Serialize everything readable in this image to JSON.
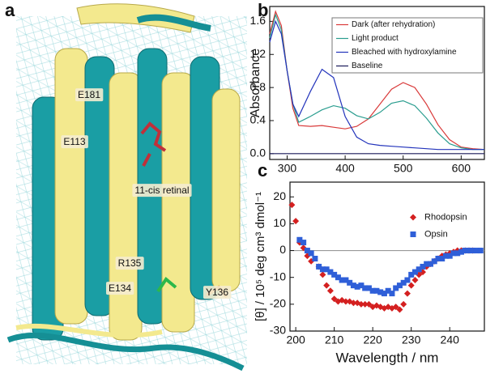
{
  "structure": {
    "panel_label": "a",
    "labels": [
      "E181",
      "E113",
      "11-cis retinal",
      "R135",
      "E134",
      "Y136"
    ]
  },
  "chart_data": [
    {
      "type": "line",
      "panel_label": "b",
      "ylabel": "Absorbance",
      "x": [
        270,
        280,
        290,
        300,
        310,
        320,
        340,
        360,
        380,
        400,
        420,
        440,
        460,
        480,
        500,
        520,
        540,
        560,
        580,
        600,
        620,
        640
      ],
      "series": [
        {
          "name": "Dark (after rehydration)",
          "color": "#d93a3a",
          "values": [
            1.45,
            1.72,
            1.55,
            1.0,
            0.55,
            0.34,
            0.33,
            0.34,
            0.32,
            0.3,
            0.33,
            0.42,
            0.6,
            0.78,
            0.86,
            0.8,
            0.6,
            0.35,
            0.17,
            0.08,
            0.06,
            0.05
          ]
        },
        {
          "name": "Light product",
          "color": "#2a9d8f",
          "values": [
            1.4,
            1.68,
            1.5,
            1.0,
            0.6,
            0.38,
            0.45,
            0.53,
            0.58,
            0.55,
            0.46,
            0.42,
            0.5,
            0.61,
            0.64,
            0.58,
            0.43,
            0.25,
            0.12,
            0.07,
            0.05,
            0.05
          ]
        },
        {
          "name": "Bleached  with hydroxylamine",
          "color": "#2233bb",
          "values": [
            1.35,
            1.6,
            1.45,
            1.0,
            0.6,
            0.45,
            0.75,
            1.02,
            0.92,
            0.45,
            0.2,
            0.12,
            0.1,
            0.09,
            0.08,
            0.07,
            0.06,
            0.05,
            0.05,
            0.05,
            0.05,
            0.05
          ]
        },
        {
          "name": "Baseline",
          "color": "#1a1a5a",
          "values": [
            0,
            0,
            0,
            0,
            0,
            0,
            0,
            0,
            0,
            0,
            0,
            0,
            0,
            0,
            0,
            0,
            0,
            0,
            0,
            0,
            0,
            0
          ]
        }
      ],
      "xlim": [
        270,
        640
      ],
      "xticks": [
        300,
        400,
        500,
        600
      ],
      "ylim": [
        -0.07,
        1.78
      ],
      "yticks": [
        {
          "value": 0,
          "label": "0.0"
        },
        0.4,
        0.8,
        1.2,
        1.6
      ],
      "legend": "upper-right"
    },
    {
      "type": "scatter",
      "panel_label": "c",
      "xlabel": "Wavelength / nm",
      "ylabel": "[θ] / 10⁵ deg cm³ dmol⁻¹",
      "series": [
        {
          "name": "Rhodopsin",
          "color": "#d42020",
          "marker": "diamond",
          "x": [
            199,
            200,
            201,
            202,
            203,
            204,
            206,
            207,
            208,
            209,
            210,
            211,
            212,
            213,
            214,
            215,
            216,
            217,
            218,
            219,
            220,
            221,
            222,
            223,
            224,
            225,
            226,
            227,
            228,
            229,
            230,
            231,
            232,
            233,
            234,
            235,
            236,
            237,
            238,
            239,
            240,
            241,
            242,
            243,
            244,
            245,
            246
          ],
          "values": [
            17,
            11,
            3,
            1,
            -2,
            -4,
            -6,
            -9,
            -13,
            -15,
            -18,
            -19,
            -18.5,
            -19,
            -19,
            -19.5,
            -19.5,
            -20,
            -20,
            -20,
            -21,
            -20.5,
            -21,
            -21.5,
            -21,
            -21.5,
            -21,
            -22,
            -20,
            -16,
            -13,
            -11,
            -9,
            -8,
            -6,
            -5,
            -4,
            -3,
            -2,
            -1.5,
            -1,
            -0.5,
            0,
            0,
            0,
            0,
            0
          ]
        },
        {
          "name": "Opsin",
          "color": "#2f5fd8",
          "marker": "square",
          "x": [
            201,
            202,
            203,
            204,
            205,
            206,
            207,
            208,
            209,
            210,
            211,
            212,
            213,
            214,
            215,
            216,
            217,
            218,
            219,
            220,
            221,
            222,
            223,
            224,
            225,
            226,
            227,
            228,
            229,
            230,
            231,
            232,
            233,
            234,
            235,
            236,
            237,
            238,
            239,
            240,
            241,
            242,
            243,
            244,
            245,
            246,
            247,
            248
          ],
          "values": [
            4,
            3,
            0,
            -1,
            -3,
            -6,
            -7,
            -7,
            -8,
            -9,
            -10,
            -11,
            -11,
            -12,
            -13,
            -13.5,
            -13,
            -14,
            -14,
            -15,
            -15,
            -15.5,
            -16,
            -15,
            -16,
            -14,
            -13,
            -12,
            -11,
            -9,
            -8,
            -7,
            -6,
            -5,
            -5,
            -4,
            -3,
            -3,
            -2,
            -2,
            -1,
            -1,
            -0.5,
            0,
            0,
            0,
            0,
            0
          ]
        }
      ],
      "xlim": [
        198.5,
        249
      ],
      "xticks": [
        200,
        210,
        220,
        230,
        240
      ],
      "ylim": [
        -30,
        25.5
      ],
      "yticks": [
        20,
        10,
        0,
        -10,
        -20,
        -30
      ],
      "zero_line": true,
      "legend": "upper-right"
    }
  ]
}
